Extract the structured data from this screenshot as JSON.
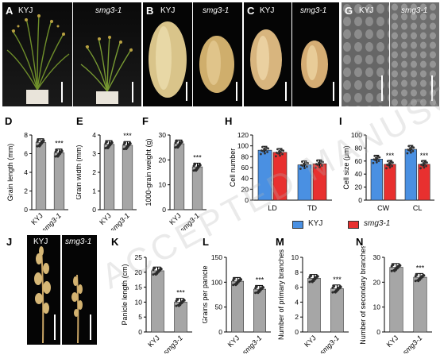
{
  "panel_letters": [
    "A",
    "B",
    "C",
    "G",
    "D",
    "E",
    "F",
    "H",
    "I",
    "J",
    "K",
    "L",
    "M",
    "N"
  ],
  "genotypes": {
    "wt": "KYJ",
    "mut": "smg3-1"
  },
  "significance": "***",
  "legend": {
    "wt": "KYJ",
    "mut": "smg3-1",
    "wt_color": "#4a90e2",
    "mut_color": "#e8302f"
  },
  "watermark": "ACCEPTED MANUSCRIPT",
  "chart_data": [
    {
      "id": "D",
      "type": "bar",
      "categories": [
        "KYJ",
        "smg3-1"
      ],
      "values": [
        7.2,
        6.1
      ],
      "ylabel": "Grain length (mm)",
      "ylim": [
        0,
        8
      ],
      "ticks": [
        "0",
        "2",
        "4",
        "6",
        "8"
      ],
      "sig": [
        "",
        "***"
      ]
    },
    {
      "id": "E",
      "type": "bar",
      "categories": [
        "KYJ",
        "smg3-1"
      ],
      "values": [
        3.5,
        3.45
      ],
      "ylabel": "Grain width (mm)",
      "ylim": [
        0,
        4
      ],
      "ticks": [
        "0",
        "1",
        "2",
        "3",
        "4"
      ],
      "sig": [
        "",
        "***"
      ]
    },
    {
      "id": "F",
      "type": "bar",
      "categories": [
        "KYJ",
        "smg3-1"
      ],
      "values": [
        26.5,
        17.2
      ],
      "ylabel": "1000-grain weight (g)",
      "ylim": [
        0,
        30
      ],
      "ticks": [
        "0",
        "10",
        "20",
        "30"
      ],
      "sig": [
        "",
        "***"
      ]
    },
    {
      "id": "H",
      "type": "bar",
      "categories": [
        "LD",
        "TD"
      ],
      "series": [
        {
          "name": "KYJ",
          "values": [
            92,
            65
          ]
        },
        {
          "name": "smg3-1",
          "values": [
            88,
            67
          ]
        }
      ],
      "ylabel": "Cell number",
      "ylim": [
        0,
        120
      ],
      "ticks": [
        "0",
        "20",
        "40",
        "60",
        "80",
        "100",
        "120"
      ],
      "sig": [
        "",
        ""
      ]
    },
    {
      "id": "I",
      "type": "bar",
      "categories": [
        "CW",
        "CL"
      ],
      "series": [
        {
          "name": "KYJ",
          "values": [
            63,
            78
          ]
        },
        {
          "name": "smg3-1",
          "values": [
            55,
            55
          ]
        }
      ],
      "ylabel": "Cell size (μm)",
      "ylim": [
        0,
        100
      ],
      "ticks": [
        "0",
        "20",
        "40",
        "60",
        "80",
        "100"
      ],
      "sig": [
        "***",
        "***"
      ]
    },
    {
      "id": "K",
      "type": "bar",
      "categories": [
        "KYJ",
        "smg3-1"
      ],
      "values": [
        20.5,
        10
      ],
      "ylabel": "Panicle length (cm)",
      "ylim": [
        0,
        25
      ],
      "ticks": [
        "0",
        "5",
        "10",
        "15",
        "20",
        "25"
      ],
      "sig": [
        "",
        "***"
      ]
    },
    {
      "id": "L",
      "type": "bar",
      "categories": [
        "KYJ",
        "smg3-1"
      ],
      "values": [
        102,
        86
      ],
      "ylabel": "Grains per panicle",
      "ylim": [
        0,
        150
      ],
      "ticks": [
        "0",
        "50",
        "100",
        "150"
      ],
      "sig": [
        "",
        "***"
      ]
    },
    {
      "id": "M",
      "type": "bar",
      "categories": [
        "KYJ",
        "smg3-1"
      ],
      "values": [
        7.2,
        5.8
      ],
      "ylabel": "Number of primary branches",
      "ylim": [
        0,
        10
      ],
      "ticks": [
        "0",
        "2",
        "4",
        "6",
        "8",
        "10"
      ],
      "sig": [
        "",
        "***"
      ]
    },
    {
      "id": "N",
      "type": "bar",
      "categories": [
        "KYJ",
        "smg3-1"
      ],
      "values": [
        26,
        22
      ],
      "ylabel": "Number of secondary branches",
      "ylim": [
        0,
        30
      ],
      "ticks": [
        "0",
        "10",
        "20",
        "30"
      ],
      "sig": [
        "",
        "***"
      ]
    }
  ]
}
